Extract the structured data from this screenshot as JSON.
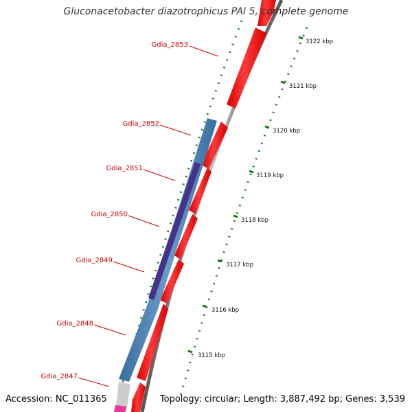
{
  "title": "Gluconacetobacter diazotrophicus PAI 5, complete genome",
  "footer": {
    "accession": "Accession: NC_011365",
    "topology": "Topology: circular; Length: 3,887,492 bp; Genes: 3,539"
  },
  "colors": {
    "gene_label": "#cc0000",
    "forward_feature": "#ee0000",
    "reverse_feature": "#4477aa",
    "hit_bar": "#443388",
    "backbone": "#888888",
    "tick": "#117711"
  },
  "genes": [
    {
      "name": "Gdia_2853"
    },
    {
      "name": "Gdia_2852"
    },
    {
      "name": "Gdia_2851"
    },
    {
      "name": "Gdia_2850"
    },
    {
      "name": "Gdia_2849"
    },
    {
      "name": "Gdia_2848"
    },
    {
      "name": "Gdia_2847"
    }
  ],
  "scale_labels": [
    {
      "text": "3122 kbp"
    },
    {
      "text": "3121 kbp"
    },
    {
      "text": "3120 kbp"
    },
    {
      "text": "3119 kbp"
    },
    {
      "text": "3118 kbp"
    },
    {
      "text": "3117 kbp"
    },
    {
      "text": "3116 kbp"
    },
    {
      "text": "3115 kbp"
    }
  ]
}
